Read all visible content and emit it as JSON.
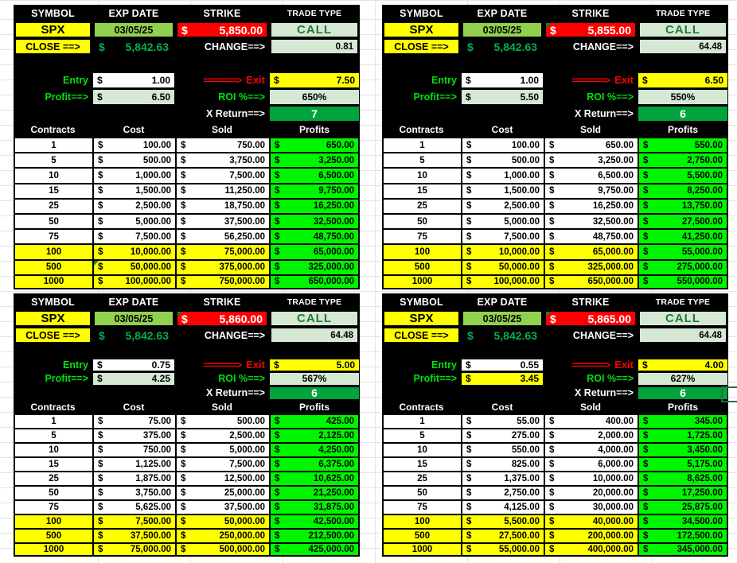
{
  "labels": {
    "symbol_header": "SYMBOL",
    "exp_date_header": "EXP DATE",
    "strike_header": "STRIKE",
    "trade_type_header": "TRADE TYPE",
    "close_label": "CLOSE ==>",
    "change_label": "CHANGE==>",
    "entry_label": "Entry",
    "exit_arrow": "=======>",
    "exit_label": "Exit",
    "profit_label": "Profit==>",
    "roi_label": "ROI %==>",
    "xreturn_label": "X Return==>",
    "contracts_header": "Contracts",
    "cost_header": "Cost",
    "sold_header": "Sold",
    "profits_header": "Profits",
    "dollar": "$"
  },
  "colors": {
    "yellow": "#FFFF00",
    "strike_red": "#FF0000",
    "exp_date_green": "#92D050",
    "pale_green": "#D5E8D4",
    "profits_green": "#00F500",
    "xreturn_green": "#00A33C",
    "label_green": "#00E010",
    "close_green": "#00B050",
    "call_green": "#1E7B34",
    "selection_green": "#217346"
  },
  "quadrants": [
    {
      "symbol": "SPX",
      "exp_date": "03/05/25",
      "strike": "5,850.00",
      "trade_type": "CALL",
      "close": "5,842.63",
      "change": "0.81",
      "entry": "1.00",
      "exit": "7.50",
      "profit": "6.50",
      "roi": "650%",
      "x_return": "7",
      "strike_comment": false,
      "profit_value_highlight": false,
      "rows": [
        {
          "contracts": "1",
          "cost": "100.00",
          "sold": "750.00",
          "profit": "650.00",
          "highlight": false
        },
        {
          "contracts": "5",
          "cost": "500.00",
          "sold": "3,750.00",
          "profit": "3,250.00",
          "highlight": false
        },
        {
          "contracts": "10",
          "cost": "1,000.00",
          "sold": "7,500.00",
          "profit": "6,500.00",
          "highlight": false
        },
        {
          "contracts": "15",
          "cost": "1,500.00",
          "sold": "11,250.00",
          "profit": "9,750.00",
          "highlight": false
        },
        {
          "contracts": "25",
          "cost": "2,500.00",
          "sold": "18,750.00",
          "profit": "16,250.00",
          "highlight": false
        },
        {
          "contracts": "50",
          "cost": "5,000.00",
          "sold": "37,500.00",
          "profit": "32,500.00",
          "highlight": false
        },
        {
          "contracts": "75",
          "cost": "7,500.00",
          "sold": "56,250.00",
          "profit": "48,750.00",
          "highlight": false
        },
        {
          "contracts": "100",
          "cost": "10,000.00",
          "sold": "75,000.00",
          "profit": "65,000.00",
          "highlight": true
        },
        {
          "contracts": "500",
          "cost": "50,000.00",
          "sold": "375,000.00",
          "profit": "325,000.00",
          "highlight": true,
          "cost_comment": true
        },
        {
          "contracts": "1000",
          "cost": "100,000.00",
          "sold": "750,000.00",
          "profit": "650,000.00",
          "highlight": true
        }
      ]
    },
    {
      "symbol": "SPX",
      "exp_date": "03/05/25",
      "strike": "5,855.00",
      "trade_type": "CALL",
      "close": "5,842.63",
      "change": "64.48",
      "entry": "1.00",
      "exit": "6.50",
      "profit": "5.50",
      "roi": "550%",
      "x_return": "6",
      "strike_comment": true,
      "profit_value_highlight": false,
      "rows": [
        {
          "contracts": "1",
          "cost": "100.00",
          "sold": "650.00",
          "profit": "550.00",
          "highlight": false
        },
        {
          "contracts": "5",
          "cost": "500.00",
          "sold": "3,250.00",
          "profit": "2,750.00",
          "highlight": false
        },
        {
          "contracts": "10",
          "cost": "1,000.00",
          "sold": "6,500.00",
          "profit": "5,500.00",
          "highlight": false
        },
        {
          "contracts": "15",
          "cost": "1,500.00",
          "sold": "9,750.00",
          "profit": "8,250.00",
          "highlight": false
        },
        {
          "contracts": "25",
          "cost": "2,500.00",
          "sold": "16,250.00",
          "profit": "13,750.00",
          "highlight": false
        },
        {
          "contracts": "50",
          "cost": "5,000.00",
          "sold": "32,500.00",
          "profit": "27,500.00",
          "highlight": false
        },
        {
          "contracts": "75",
          "cost": "7,500.00",
          "sold": "48,750.00",
          "profit": "41,250.00",
          "highlight": false
        },
        {
          "contracts": "100",
          "cost": "10,000.00",
          "sold": "65,000.00",
          "profit": "55,000.00",
          "highlight": true
        },
        {
          "contracts": "500",
          "cost": "50,000.00",
          "sold": "325,000.00",
          "profit": "275,000.00",
          "highlight": true
        },
        {
          "contracts": "1000",
          "cost": "100,000.00",
          "sold": "650,000.00",
          "profit": "550,000.00",
          "highlight": true
        }
      ]
    },
    {
      "symbol": "SPX",
      "exp_date": "03/05/25",
      "strike": "5,860.00",
      "trade_type": "CALL",
      "close": "5,842.63",
      "change": "64.48",
      "entry": "0.75",
      "exit": "5.00",
      "profit": "4.25",
      "roi": "567%",
      "x_return": "6",
      "strike_comment": true,
      "profit_value_highlight": false,
      "rows": [
        {
          "contracts": "1",
          "cost": "75.00",
          "sold": "500.00",
          "profit": "425.00",
          "highlight": false
        },
        {
          "contracts": "5",
          "cost": "375.00",
          "sold": "2,500.00",
          "profit": "2,125.00",
          "highlight": false
        },
        {
          "contracts": "10",
          "cost": "750.00",
          "sold": "5,000.00",
          "profit": "4,250.00",
          "highlight": false
        },
        {
          "contracts": "15",
          "cost": "1,125.00",
          "sold": "7,500.00",
          "profit": "6,375.00",
          "highlight": false
        },
        {
          "contracts": "25",
          "cost": "1,875.00",
          "sold": "12,500.00",
          "profit": "10,625.00",
          "highlight": false
        },
        {
          "contracts": "50",
          "cost": "3,750.00",
          "sold": "25,000.00",
          "profit": "21,250.00",
          "highlight": false
        },
        {
          "contracts": "75",
          "cost": "5,625.00",
          "sold": "37,500.00",
          "profit": "31,875.00",
          "highlight": false
        },
        {
          "contracts": "100",
          "cost": "7,500.00",
          "sold": "50,000.00",
          "profit": "42,500.00",
          "highlight": true
        },
        {
          "contracts": "500",
          "cost": "37,500.00",
          "sold": "250,000.00",
          "profit": "212,500.00",
          "highlight": true
        },
        {
          "contracts": "1000",
          "cost": "75,000.00",
          "sold": "500,000.00",
          "profit": "425,000.00",
          "highlight": true
        }
      ]
    },
    {
      "symbol": "SPX",
      "exp_date": "03/05/25",
      "strike": "5,865.00",
      "trade_type": "CALL",
      "close": "5,842.63",
      "change": "64.48",
      "entry": "0.55",
      "exit": "4.00",
      "profit": "3.45",
      "roi": "627%",
      "x_return": "6",
      "strike_comment": true,
      "profit_value_highlight": true,
      "rows": [
        {
          "contracts": "1",
          "cost": "55.00",
          "sold": "400.00",
          "profit": "345.00",
          "highlight": false
        },
        {
          "contracts": "5",
          "cost": "275.00",
          "sold": "2,000.00",
          "profit": "1,725.00",
          "highlight": false
        },
        {
          "contracts": "10",
          "cost": "550.00",
          "sold": "4,000.00",
          "profit": "3,450.00",
          "highlight": false
        },
        {
          "contracts": "15",
          "cost": "825.00",
          "sold": "6,000.00",
          "profit": "5,175.00",
          "highlight": false
        },
        {
          "contracts": "25",
          "cost": "1,375.00",
          "sold": "10,000.00",
          "profit": "8,625.00",
          "highlight": false
        },
        {
          "contracts": "50",
          "cost": "2,750.00",
          "sold": "20,000.00",
          "profit": "17,250.00",
          "highlight": false
        },
        {
          "contracts": "75",
          "cost": "4,125.00",
          "sold": "30,000.00",
          "profit": "25,875.00",
          "highlight": false
        },
        {
          "contracts": "100",
          "cost": "5,500.00",
          "sold": "40,000.00",
          "profit": "34,500.00",
          "highlight": true
        },
        {
          "contracts": "500",
          "cost": "27,500.00",
          "sold": "200,000.00",
          "profit": "172,500.00",
          "highlight": true
        },
        {
          "contracts": "1000",
          "cost": "55,000.00",
          "sold": "400,000.00",
          "profit": "345,000.00",
          "highlight": true
        }
      ]
    }
  ]
}
